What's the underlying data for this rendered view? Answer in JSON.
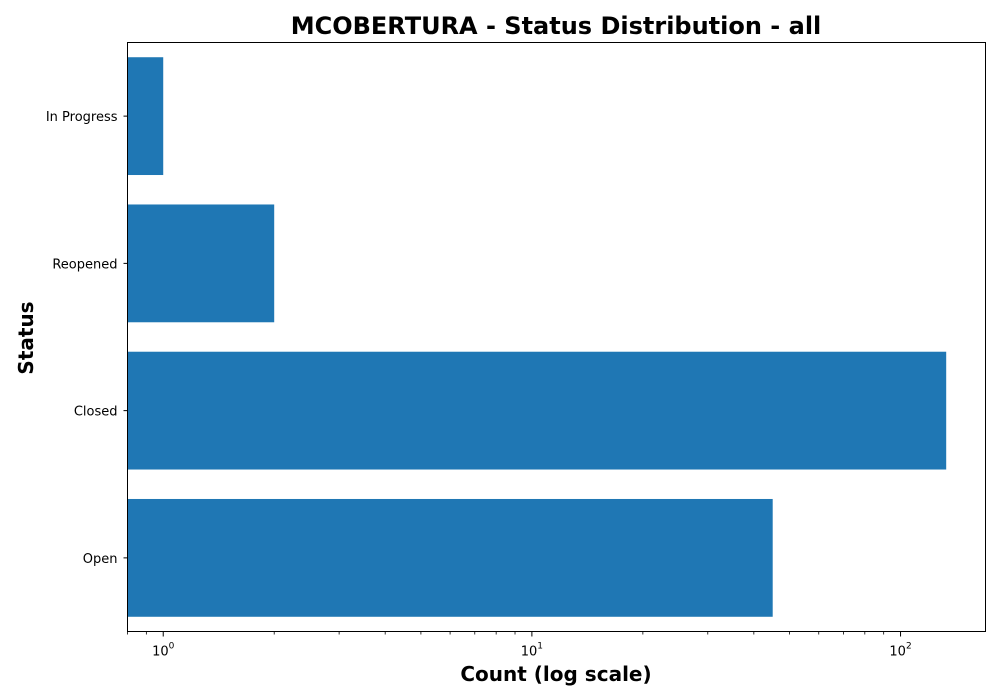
{
  "chart_data": {
    "type": "bar",
    "orientation": "horizontal",
    "title": "MCOBERTURA - Status Distribution - all",
    "xlabel": "Count (log scale)",
    "ylabel": "Status",
    "x_scale": "log",
    "xlim": [
      0.8,
      170
    ],
    "x_ticks": [
      {
        "value": 1,
        "base": "10",
        "exp": "0"
      },
      {
        "value": 10,
        "base": "10",
        "exp": "1"
      },
      {
        "value": 100,
        "base": "10",
        "exp": "2"
      }
    ],
    "categories": [
      "Open",
      "Closed",
      "Reopened",
      "In Progress"
    ],
    "values": [
      45,
      133,
      2,
      1
    ],
    "bar_color": "#1f77b4",
    "grid": false,
    "legend": "none"
  }
}
